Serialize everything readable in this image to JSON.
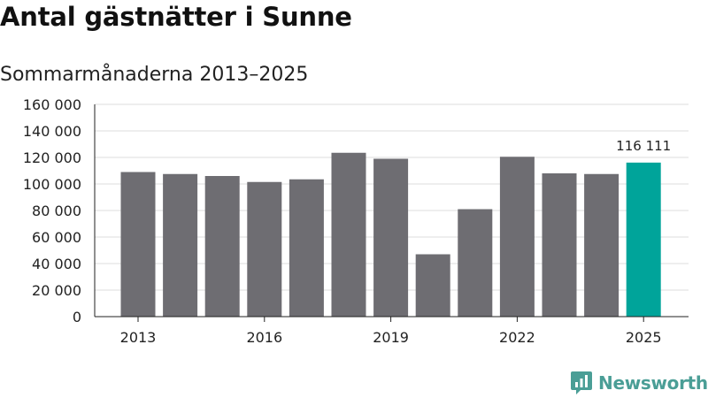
{
  "title": "Antal gästnätter i Sunne",
  "subtitle": "Sommarmånaderna 2013–2025",
  "brand": "Newsworthy",
  "colors": {
    "bar": "#6e6d72",
    "highlight": "#00a49a",
    "grid": "#dddddd",
    "brand": "#4a9e96"
  },
  "chart_data": {
    "type": "bar",
    "title": "Antal gästnätter i Sunne",
    "subtitle": "Sommarmånaderna 2013–2025",
    "xlabel": "",
    "ylabel": "",
    "categories": [
      "2013",
      "2014",
      "2015",
      "2016",
      "2017",
      "2018",
      "2019",
      "2020",
      "2021",
      "2022",
      "2023",
      "2024",
      "2025"
    ],
    "values": [
      109000,
      107500,
      106000,
      101500,
      103500,
      123500,
      119000,
      47000,
      81000,
      120500,
      108000,
      107500,
      116111
    ],
    "ylim": [
      0,
      160000
    ],
    "yticks": [
      0,
      20000,
      40000,
      60000,
      80000,
      100000,
      120000,
      140000,
      160000
    ],
    "ytick_labels": [
      "0",
      "20 000",
      "40 000",
      "60 000",
      "80 000",
      "100 000",
      "120 000",
      "140 000",
      "160 000"
    ],
    "xtick_labels": [
      "2013",
      "2016",
      "2019",
      "2022",
      "2025"
    ],
    "highlight_category": "2025",
    "highlight_label": "116 111",
    "grid": true
  }
}
